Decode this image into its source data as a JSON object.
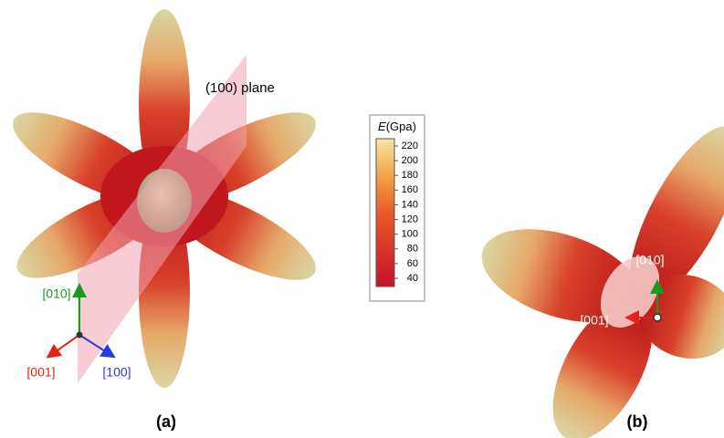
{
  "panel_a": {
    "plane_label": "(100) plane",
    "axes": {
      "up": "[010]",
      "left": "[001]",
      "right": "[100]"
    },
    "caption": "(a)"
  },
  "colorbar": {
    "symbol": "E",
    "unit": "(Gpa)",
    "labels": [
      220,
      200,
      180,
      160,
      140,
      120,
      100,
      80,
      60,
      40
    ]
  },
  "panel_b": {
    "axes": {
      "up": "[010]",
      "left": "[001]"
    },
    "caption": "(b)"
  }
}
